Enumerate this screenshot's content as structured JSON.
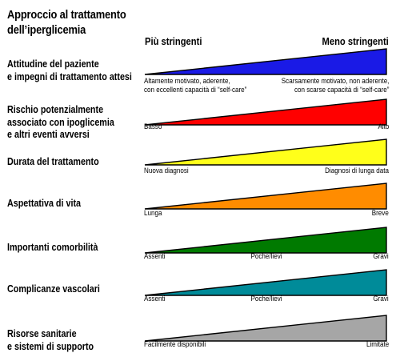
{
  "title_lines": [
    "Approccio al trattamento",
    "dell’iperglicemia"
  ],
  "columns": {
    "left": "Più stringenti",
    "right": "Meno stringenti"
  },
  "rows": [
    {
      "label": [
        "Attitudine del paziente",
        "e impegni di trattamento attesi"
      ],
      "color": "#1a1ae6",
      "left": [
        "Altamente motivato, aderente,",
        "con eccellenti capacità di “self-care”"
      ],
      "right": [
        "Scarsamente motivato, non aderente,",
        "con scarse capacità di “self-care”"
      ]
    },
    {
      "label": [
        "Rischio potenzialmente",
        "associato con ipoglicemia",
        "e altri eventi avversi"
      ],
      "color": "#ff0000",
      "left": [
        "Basso"
      ],
      "right": [
        "Alto"
      ]
    },
    {
      "label": [
        "Durata del trattamento"
      ],
      "color": "#ffff1a",
      "left": [
        "Nuova diagnosi"
      ],
      "right": [
        "Diagnosi di lunga data"
      ]
    },
    {
      "label": [
        "Aspettativa di vita"
      ],
      "color": "#ff8c00",
      "left": [
        "Lunga"
      ],
      "right": [
        "Breve"
      ]
    },
    {
      "label": [
        "Importanti comorbilità"
      ],
      "color": "#007a00",
      "left": [
        "Assenti"
      ],
      "center": [
        "Poche/lievi"
      ],
      "right": [
        "Gravi"
      ]
    },
    {
      "label": [
        "Complicanze vascolari"
      ],
      "color": "#008b99",
      "left": [
        "Assenti"
      ],
      "center": [
        "Poche/lievi"
      ],
      "right": [
        "Gravi"
      ]
    },
    {
      "label": [
        "Risorse sanitarie",
        "e sistemi di supporto"
      ],
      "color": "#a6a6a6",
      "left": [
        "Facilmente disponibili"
      ],
      "right": [
        "Limitate"
      ]
    }
  ]
}
